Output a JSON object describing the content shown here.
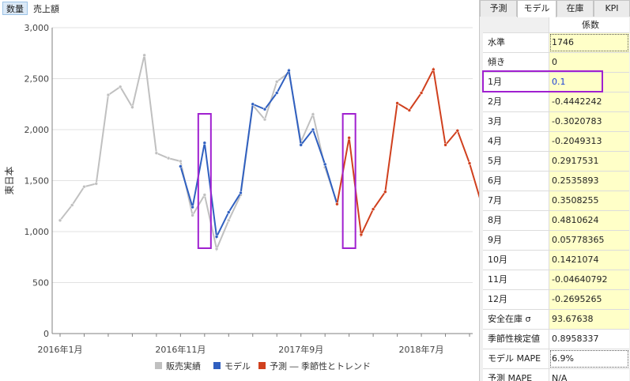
{
  "top_tabs": {
    "quantity": "数量",
    "sales": "売上額"
  },
  "side_tabs": [
    "予測",
    "モデル",
    "在庫",
    "KPI"
  ],
  "coef_header": "係数",
  "params": [
    {
      "label": "水準",
      "value": "1746"
    },
    {
      "label": "傾き",
      "value": "0"
    },
    {
      "label": "1月",
      "value": "0.1"
    },
    {
      "label": "2月",
      "value": "-0.4442242"
    },
    {
      "label": "3月",
      "value": "-0.3020783"
    },
    {
      "label": "4月",
      "value": "-0.2049313"
    },
    {
      "label": "5月",
      "value": "0.2917531"
    },
    {
      "label": "6月",
      "value": "0.2535893"
    },
    {
      "label": "7月",
      "value": "0.3508255"
    },
    {
      "label": "8月",
      "value": "0.4810624"
    },
    {
      "label": "9月",
      "value": "0.05778365"
    },
    {
      "label": "10月",
      "value": "0.1421074"
    },
    {
      "label": "11月",
      "value": "-0.04640792"
    },
    {
      "label": "12月",
      "value": "-0.2695265"
    },
    {
      "label": "安全在庫 σ",
      "value": "93.67638"
    },
    {
      "label": "季節性検定値",
      "value": "0.8958337"
    },
    {
      "label": "モデル MAPE",
      "value": "6.9%"
    },
    {
      "label": "予測 MAPE",
      "value": "N/A"
    }
  ],
  "chart_data": {
    "type": "line",
    "ylabel": "東日本",
    "ylim": [
      0,
      3000
    ],
    "yticks": [
      0,
      500,
      1000,
      1500,
      2000,
      2500,
      3000
    ],
    "ytick_labels": [
      "0",
      "500",
      "1,000",
      "1,500",
      "2,000",
      "2,500",
      "3,000"
    ],
    "x_start_index": 0,
    "x_end_index": 34,
    "xtick_positions": [
      0,
      10,
      20,
      30
    ],
    "xtick_labels": [
      "2016年1月",
      "2016年11月",
      "2017年9月",
      "2018年7月"
    ],
    "legend_position": "bottom",
    "series": [
      {
        "name": "販売実績",
        "color": "#c0c0c0",
        "start": 0,
        "values": [
          1110,
          1260,
          1440,
          1470,
          2340,
          2420,
          2220,
          2730,
          1770,
          1720,
          1690,
          1160,
          1360,
          830,
          1110,
          1360,
          2240,
          2100,
          2470,
          2560,
          1880,
          2150,
          1630,
          1280
        ]
      },
      {
        "name": "モデル",
        "color": "#3060c0",
        "start": 10,
        "values": [
          1640,
          1240,
          1870,
          950,
          1190,
          1380,
          2250,
          2200,
          2360,
          2580,
          1850,
          2000,
          1660,
          1270
        ]
      },
      {
        "name": "予測 ― 季節性とトレンド",
        "color": "#d0401e",
        "start": 23,
        "values": [
          1270,
          1920,
          970,
          1220,
          1390,
          2260,
          2190,
          2360,
          2590,
          1850,
          1990,
          1670,
          1270
        ]
      }
    ]
  },
  "colors": {
    "highlight_box": "#a020d0",
    "selected_row_value": "#1a3fd6",
    "editable_cell": "#ffffc8"
  }
}
